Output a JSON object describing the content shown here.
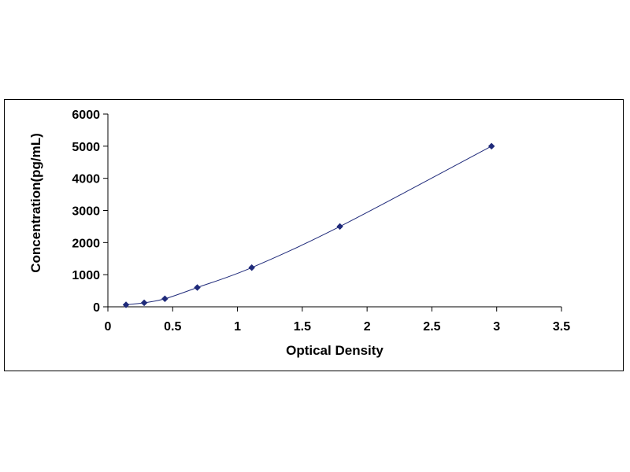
{
  "chart_data": {
    "type": "scatter",
    "title": "",
    "xlabel": "Optical Density",
    "ylabel": "Concentration(pg/mL)",
    "xlim": [
      0,
      3.5
    ],
    "ylim": [
      0,
      6000
    ],
    "x_ticks": [
      "0",
      "0.5",
      "1",
      "1.5",
      "2",
      "2.5",
      "3",
      "3.5"
    ],
    "y_ticks": [
      "0",
      "1000",
      "2000",
      "3000",
      "4000",
      "5000",
      "6000"
    ],
    "grid": false,
    "legend": "none",
    "trendline": true,
    "marker_color": "#1f2a7a",
    "line_color": "#1f2a7a",
    "series": [
      {
        "points": [
          {
            "x": 0.14,
            "y": 62.5
          },
          {
            "x": 0.28,
            "y": 125
          },
          {
            "x": 0.44,
            "y": 250
          },
          {
            "x": 0.69,
            "y": 600
          },
          {
            "x": 1.11,
            "y": 1220
          },
          {
            "x": 1.79,
            "y": 2500
          },
          {
            "x": 2.96,
            "y": 5000
          }
        ]
      }
    ]
  }
}
